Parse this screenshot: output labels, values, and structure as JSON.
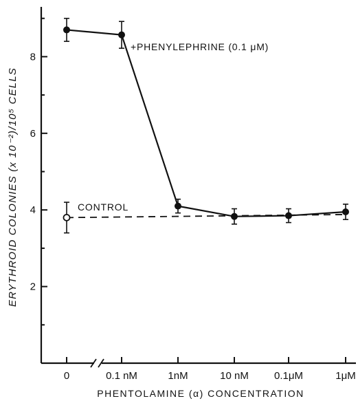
{
  "chart_data": {
    "type": "line",
    "ylabel": "ERYTHROID COLONIES (x 10⁻²)/10⁵ CELLS",
    "xlabel": "PHENTOLAMINE (α) CONCENTRATION",
    "categories": [
      "0",
      "0.1 nM",
      "1nM",
      "10 nM",
      "0.1μM",
      "1μM"
    ],
    "ylim": [
      0,
      9.3
    ],
    "yticks": [
      2,
      4,
      6,
      8
    ],
    "ytick_labels": [
      "2",
      "4",
      "6",
      "8"
    ],
    "axis_break": "between 0 and 0.1 nM on x-axis",
    "grid": false,
    "series": [
      {
        "name": "+PHENYLEPHRINE (0.1 μM)",
        "style": "solid",
        "marker": "filled-circle",
        "points": [
          {
            "x": "0",
            "y": 8.7,
            "err": 0.3
          },
          {
            "x": "0.1 nM",
            "y": 8.57,
            "err": 0.35
          },
          {
            "x": "1nM",
            "y": 4.1,
            "err": 0.18
          },
          {
            "x": "10 nM",
            "y": 3.83,
            "err": 0.2
          },
          {
            "x": "0.1μM",
            "y": 3.85,
            "err": 0.18
          },
          {
            "x": "1μM",
            "y": 3.95,
            "err": 0.2
          }
        ]
      },
      {
        "name": "CONTROL",
        "style": "dashed",
        "marker": "open-circle",
        "points": [
          {
            "x": "0",
            "y": 3.8,
            "err": 0.4
          }
        ],
        "line_to": {
          "x": "1μM",
          "y": 3.88
        }
      }
    ]
  }
}
